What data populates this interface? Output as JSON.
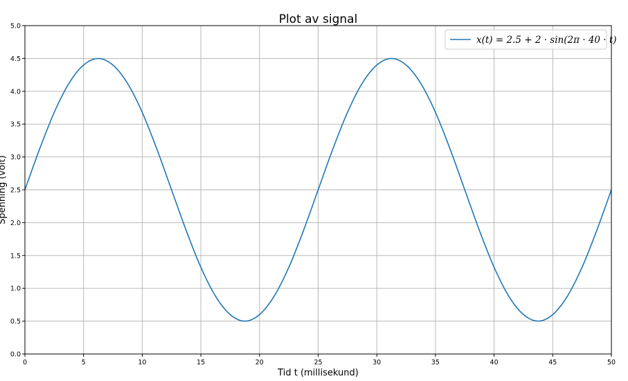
{
  "chart_data": {
    "type": "line",
    "title": "Plot av signal",
    "xlabel": "Tid t (millisekund)",
    "ylabel": "Spenning (volt)",
    "xlim": [
      0,
      50
    ],
    "ylim": [
      0.0,
      5.0
    ],
    "xticks": [
      0,
      5,
      10,
      15,
      20,
      25,
      30,
      35,
      40,
      45,
      50
    ],
    "xtick_labels": [
      "0",
      "5",
      "10",
      "15",
      "20",
      "25",
      "30",
      "35",
      "40",
      "45",
      "50"
    ],
    "yticks": [
      0.0,
      0.5,
      1.0,
      1.5,
      2.0,
      2.5,
      3.0,
      3.5,
      4.0,
      4.5,
      5.0
    ],
    "ytick_labels": [
      "0.0",
      "0.5",
      "1.0",
      "1.5",
      "2.0",
      "2.5",
      "3.0",
      "3.5",
      "4.0",
      "4.5",
      "5.0"
    ],
    "grid": true,
    "legend_position": "top-right",
    "series": [
      {
        "name": "x(t) = 2.5 + 2 · sin(2π · 40 · t)",
        "color": "#1f77b4",
        "x": [
          0,
          1.25,
          2.5,
          3.75,
          5,
          6.25,
          7.5,
          8.75,
          10,
          11.25,
          12.5,
          13.75,
          15,
          16.25,
          17.5,
          18.75,
          20,
          21.25,
          22.5,
          23.75,
          25,
          26.25,
          27.5,
          28.75,
          30,
          31.25,
          32.5,
          33.75,
          35,
          36.25,
          37.5,
          38.75,
          40,
          41.25,
          42.5,
          43.75,
          45,
          46.25,
          47.5,
          48.75,
          50
        ],
        "y": [
          2.5,
          3.12,
          3.68,
          4.12,
          4.4,
          4.5,
          4.4,
          4.12,
          3.68,
          3.12,
          2.5,
          1.88,
          1.32,
          0.88,
          0.6,
          0.5,
          0.6,
          0.88,
          1.32,
          1.88,
          2.5,
          3.12,
          3.68,
          4.12,
          4.4,
          4.5,
          4.4,
          4.12,
          3.68,
          3.12,
          2.5,
          1.88,
          1.32,
          0.88,
          0.6,
          0.5,
          0.6,
          0.88,
          1.32,
          1.88,
          2.5
        ]
      }
    ]
  }
}
